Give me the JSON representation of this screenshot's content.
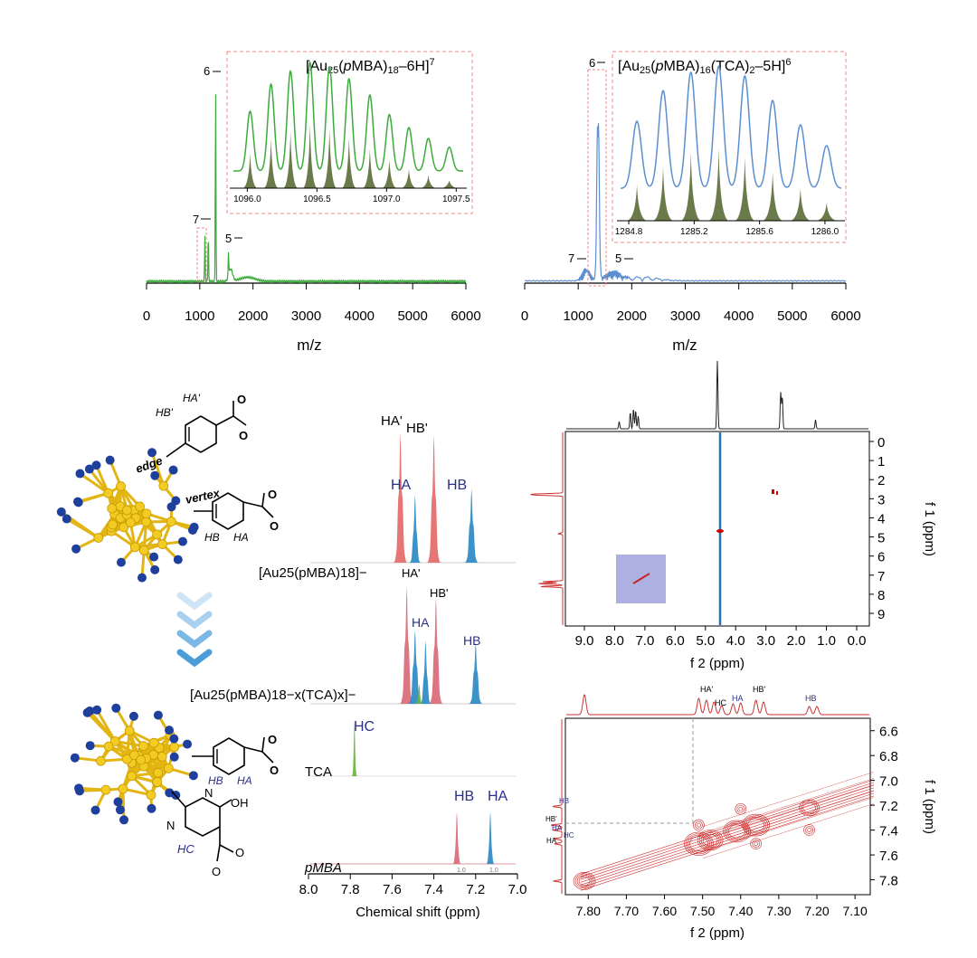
{
  "chart_data": [
    {
      "type": "line",
      "id": "ms_left",
      "title": "[Au25(pMBA)18–6H]7−",
      "title_parts": {
        "a": "[Au",
        "b": "25",
        "c": "(",
        "d": "p",
        "e": "MBA)",
        "f": "18",
        "g": "–6H]",
        "h": "7"
      },
      "xlabel": "m/z",
      "xlim": [
        0,
        6000
      ],
      "xticks": [
        "0",
        "1000",
        "2000",
        "3000",
        "4000",
        "5000",
        "6000"
      ],
      "series_color": "#3cab3c",
      "peaks": [
        {
          "x": 1096,
          "y": 0.22
        },
        {
          "x": 1160,
          "y": 0.25
        },
        {
          "x": 1298,
          "y": 1.0
        },
        {
          "x": 1540,
          "y": 0.12
        }
      ],
      "charge_labels": [
        "6",
        "7",
        "5"
      ],
      "inset": {
        "xlim": [
          1095.9,
          1097.55
        ],
        "xticks": [
          "1096.0",
          "1096.5",
          "1097.0",
          "1097.5"
        ],
        "exp_color": "#3cab3c",
        "sim_color": "#6b7a4a",
        "peaks_x": [
          1096.02,
          1096.17,
          1096.31,
          1096.45,
          1096.59,
          1096.73,
          1096.88,
          1097.02,
          1097.16,
          1097.3,
          1097.45
        ],
        "exp_heights": [
          0.55,
          0.8,
          0.92,
          1.0,
          0.96,
          0.85,
          0.7,
          0.52,
          0.4,
          0.3,
          0.22
        ],
        "sim_heights": [
          0.55,
          0.78,
          0.9,
          1.0,
          0.94,
          0.8,
          0.62,
          0.45,
          0.3,
          0.2,
          0.12
        ]
      }
    },
    {
      "type": "line",
      "id": "ms_right",
      "title": "[Au25(pMBA)16(TCA)2–5H]6−",
      "title_parts": {
        "a": "[Au",
        "b": "25",
        "c": "(",
        "d": "p",
        "e": "MBA)",
        "f": "16",
        "g": "(TCA)",
        "h": "2",
        "i": "–5H]",
        "j": "6"
      },
      "xlabel": "m/z",
      "xlim": [
        0,
        6000
      ],
      "xticks": [
        "0",
        "1000",
        "2000",
        "3000",
        "4000",
        "5000",
        "6000"
      ],
      "series_color": "#5b8fd0",
      "charge_labels": [
        "6",
        "7",
        "5"
      ],
      "inset": {
        "xlim": [
          1284.75,
          1286.1
        ],
        "xticks": [
          "1284.8",
          "1285.2",
          "1285.6",
          "1286.0"
        ],
        "exp_color": "#5b8fd0",
        "sim_color": "#6b7a4a",
        "peaks_x": [
          1284.85,
          1285.01,
          1285.18,
          1285.35,
          1285.51,
          1285.68,
          1285.85,
          1286.01
        ],
        "exp_heights": [
          0.55,
          0.8,
          0.95,
          1.0,
          0.92,
          0.72,
          0.52,
          0.35
        ],
        "sim_heights": [
          0.5,
          0.75,
          0.95,
          1.0,
          0.88,
          0.68,
          0.45,
          0.25
        ]
      }
    },
    {
      "type": "line",
      "id": "nmr_1d",
      "xlabel": "Chemical shift (ppm)",
      "xlim": [
        8.0,
        7.0
      ],
      "xticks": [
        "8.0",
        "7.8",
        "7.6",
        "7.4",
        "7.2",
        "7.0"
      ],
      "traces": [
        {
          "name": "[Au25(pMBA)18]−"
        },
        {
          "name": "[Au25(pMBA)18−x(TCA)x]−"
        },
        {
          "name": "TCA"
        },
        {
          "name": "pMBA"
        }
      ],
      "labels": {
        "ha_prime": "HA'",
        "hb_prime": "HB'",
        "ha": "HA",
        "hb": "HB",
        "hc": "HC",
        "integral": "1.0"
      }
    },
    {
      "type": "heatmap",
      "id": "nmr_2d_top",
      "xlabel": "f 2 (ppm)",
      "ylabel": "f 1 (ppm)",
      "xlim": [
        9.6,
        0.0
      ],
      "ylim": [
        -0.5,
        9.6
      ],
      "xticks": [
        "9.0",
        "8.0",
        "7.0",
        "6.0",
        "5.0",
        "4.0",
        "3.0",
        "2.0",
        "1.0",
        "0.0"
      ],
      "yticks": [
        "0",
        "1",
        "2",
        "3",
        "4",
        "5",
        "6",
        "7",
        "8",
        "9"
      ]
    },
    {
      "type": "heatmap",
      "id": "nmr_2d_bottom",
      "xlabel": "f 2 (ppm)",
      "ylabel": "f 1 (ppm)",
      "xlim": [
        7.86,
        7.06
      ],
      "ylim": [
        6.5,
        7.92
      ],
      "xticks": [
        "7.80",
        "7.70",
        "7.60",
        "7.50",
        "7.40",
        "7.30",
        "7.20",
        "7.10"
      ],
      "yticks": [
        "6.6",
        "6.8",
        "7.0",
        "7.2",
        "7.4",
        "7.6",
        "7.8"
      ],
      "peak_labels": [
        "HA'",
        "HC",
        "HA",
        "HB'",
        "HB"
      ],
      "left_labels": [
        "HB",
        "HB'",
        "HA",
        "HC",
        "HA"
      ]
    }
  ],
  "structure": {
    "edge": "edge",
    "vertex": "vertex",
    "oh": "OH",
    "o": "O",
    "n": "N",
    "hb_prime": "HB'",
    "ha_prime": "HA'",
    "hb": "HB",
    "ha": "HA",
    "hc": "HC"
  },
  "colors": {
    "red": "#e46a6a",
    "blue": "#2b8ac4",
    "green": "#6cb33f",
    "ms_green": "#3cab3c",
    "ms_blue": "#5b8fd0",
    "gold": "#f0c419",
    "navy": "#1f3f9c"
  }
}
